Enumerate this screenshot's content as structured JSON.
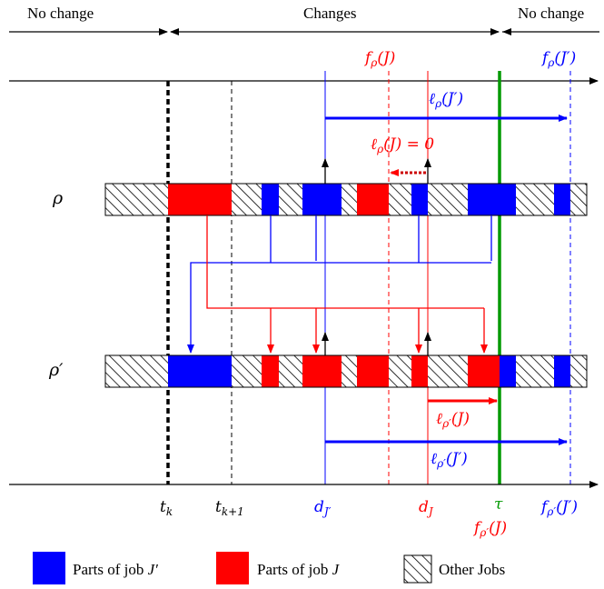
{
  "colors": {
    "job_j_prime": "#0000ff",
    "job_j": "#ff0000",
    "tau_line": "#009900",
    "other_jobs_hatch": "#000000",
    "axis": "#000000"
  },
  "header": {
    "left": "No change",
    "middle": "Changes",
    "right": "No change"
  },
  "rows": {
    "rho": "ρ",
    "rho_prime": "ρ′"
  },
  "top_axis": {
    "f_rho_J": "f_ρ(J)",
    "f_rho_J_prime": "f_ρ(J′)"
  },
  "annotations": {
    "ell_rho_J_prime": "ℓ_ρ(J′)",
    "ell_rho_J_zero": "ℓ_ρ(J) = 0",
    "ell_rho_prime_J": "ℓ_ρ′(J)",
    "ell_rho_prime_J_prime": "ℓ_ρ′(J′)"
  },
  "bottom_axis": {
    "t_k": "t_k",
    "t_k1": "t_k+1",
    "d_J_prime": "d_J′",
    "d_J": "d_J",
    "tau": "τ",
    "f_rho_prime_J": "f_ρ′(J)",
    "f_rho_prime_J_prime": "f_ρ′(J′)"
  },
  "legend": {
    "blue": "Parts of job J′",
    "red": "Parts of job J",
    "hatch": "Other Jobs"
  },
  "schedule_rho": [
    "hatch",
    "red",
    "hatch",
    "blue",
    "hatch",
    "blue",
    "hatch",
    "red",
    "hatch",
    "blue",
    "hatch",
    "blue",
    "hatch",
    "blue",
    "hatch"
  ],
  "schedule_rho_prime": [
    "hatch",
    "blue",
    "hatch",
    "red",
    "hatch",
    "red",
    "hatch",
    "red",
    "hatch",
    "red",
    "hatch",
    "red",
    "blue",
    "hatch",
    "blue",
    "hatch"
  ]
}
